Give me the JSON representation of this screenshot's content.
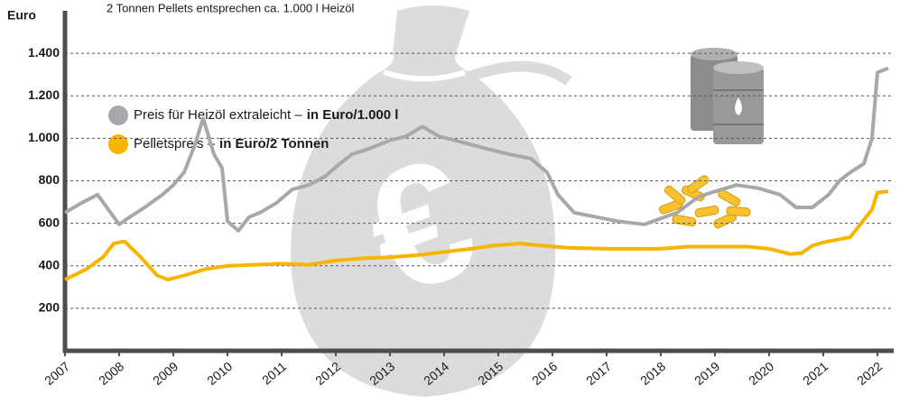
{
  "chart_data": {
    "type": "line",
    "subtitle": "2 Tonnen Pellets entsprechen ca. 1.000 l Heizöl",
    "y_label": "Euro",
    "xlim": [
      2007,
      2022.25
    ],
    "ylim": [
      0,
      1600
    ],
    "xticks": [
      2007,
      2008,
      2009,
      2010,
      2011,
      2012,
      2013,
      2014,
      2015,
      2016,
      2017,
      2018,
      2019,
      2020,
      2021,
      2022
    ],
    "yticks": [
      {
        "value": 200,
        "label": "200"
      },
      {
        "value": 400,
        "label": "400"
      },
      {
        "value": 600,
        "label": "600"
      },
      {
        "value": 800,
        "label": "800"
      },
      {
        "value": 1000,
        "label": "1.000"
      },
      {
        "value": 1200,
        "label": "1.200"
      },
      {
        "value": 1400,
        "label": "1.400"
      }
    ],
    "grid": true,
    "series": [
      {
        "name": "Preis für Heizöl extraleicht –",
        "unit": "in Euro/1.000 l",
        "color": "#a6a8ab",
        "x": [
          2007.0,
          2007.3,
          2007.6,
          2007.8,
          2008.0,
          2008.2,
          2008.5,
          2008.8,
          2009.0,
          2009.2,
          2009.4,
          2009.55,
          2009.75,
          2009.9,
          2010.0,
          2010.2,
          2010.4,
          2010.6,
          2010.9,
          2011.2,
          2011.5,
          2011.8,
          2012.0,
          2012.3,
          2012.6,
          2013.0,
          2013.3,
          2013.6,
          2013.9,
          2014.2,
          2014.5,
          2014.8,
          2015.2,
          2015.6,
          2015.9,
          2016.1,
          2016.4,
          2016.8,
          2017.2,
          2017.7,
          2018.3,
          2018.7,
          2019.0,
          2019.4,
          2019.8,
          2020.2,
          2020.5,
          2020.8,
          2021.1,
          2021.3,
          2021.5,
          2021.75,
          2021.9,
          2022.0,
          2022.2
        ],
        "values": [
          650,
          695,
          735,
          665,
          595,
          630,
          680,
          735,
          780,
          840,
          970,
          1095,
          925,
          860,
          610,
          565,
          630,
          650,
          695,
          760,
          780,
          820,
          865,
          925,
          950,
          990,
          1010,
          1055,
          1010,
          990,
          970,
          950,
          925,
          905,
          840,
          735,
          650,
          630,
          610,
          595,
          650,
          725,
          750,
          780,
          765,
          735,
          675,
          675,
          735,
          800,
          840,
          880,
          1000,
          1310,
          1330
        ]
      },
      {
        "name": "Pelletspreis –",
        "unit": "in Euro/2 Tonnen",
        "color": "#f7b500",
        "x": [
          2007.0,
          2007.4,
          2007.7,
          2007.9,
          2008.1,
          2008.4,
          2008.7,
          2008.9,
          2009.2,
          2009.6,
          2010.0,
          2010.5,
          2011.0,
          2011.5,
          2012.0,
          2012.5,
          2013.0,
          2013.5,
          2014.0,
          2014.5,
          2014.9,
          2015.4,
          2015.8,
          2016.3,
          2017.0,
          2018.0,
          2018.5,
          2019.0,
          2019.6,
          2020.0,
          2020.4,
          2020.6,
          2020.8,
          2021.0,
          2021.5,
          2021.9,
          2022.0,
          2022.2
        ],
        "values": [
          335,
          385,
          440,
          505,
          515,
          440,
          355,
          335,
          355,
          385,
          400,
          405,
          410,
          405,
          425,
          435,
          440,
          450,
          465,
          480,
          495,
          505,
          495,
          485,
          480,
          480,
          490,
          490,
          490,
          480,
          455,
          460,
          495,
          510,
          535,
          665,
          745,
          750
        ]
      }
    ]
  }
}
